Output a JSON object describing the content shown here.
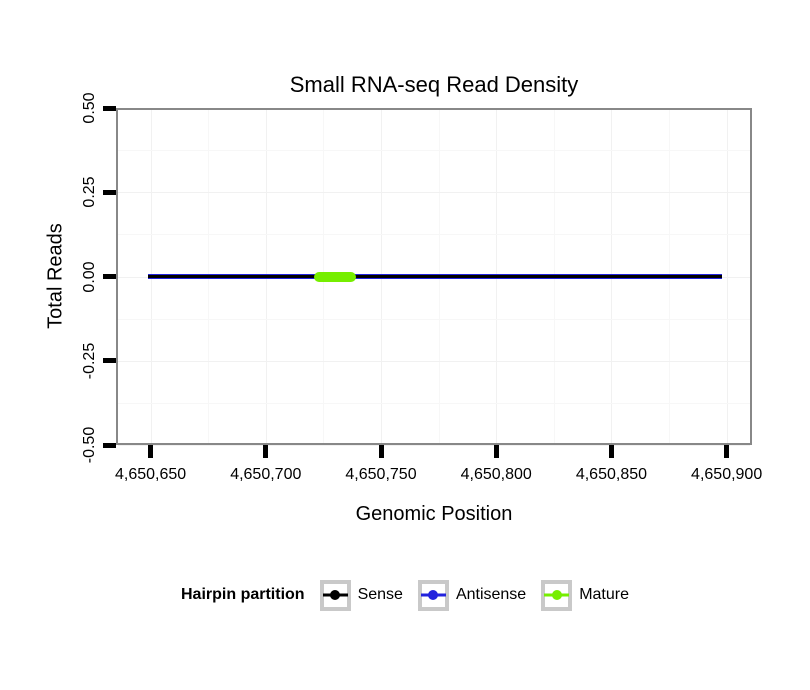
{
  "chart_data": {
    "type": "line",
    "title": "Small RNA-seq Read Density",
    "xlabel": "Genomic Position",
    "ylabel": "Total Reads",
    "xlim": [
      4650635,
      4650911
    ],
    "ylim": [
      -0.5,
      0.5
    ],
    "xticks": {
      "values": [
        4650650,
        4650700,
        4650750,
        4650800,
        4650850,
        4650900
      ],
      "labels": [
        "4,650,650",
        "4,650,700",
        "4,650,750",
        "4,650,800",
        "4,650,850",
        "4,650,900"
      ]
    },
    "yticks": {
      "values": [
        0.5,
        0.25,
        0.0,
        -0.25,
        -0.5
      ],
      "labels": [
        "0.50",
        "0.25",
        "0.00",
        "-0.25",
        "-0.50"
      ]
    },
    "grid": {
      "show": true,
      "show_minor": true,
      "major_color": "#f1f1f1",
      "minor_color": "#f7f7f7"
    },
    "panel_border_color": "#888888",
    "tick_color": "#000000",
    "series": [
      {
        "name": "Antisense",
        "color": "#2222DD",
        "x": [
          4650649,
          4650898
        ],
        "y": [
          0,
          0
        ],
        "thickness": 5,
        "rounded": false
      },
      {
        "name": "Sense",
        "color": "#000000",
        "x": [
          4650649,
          4650898
        ],
        "y": [
          0,
          0
        ],
        "thickness": 3,
        "rounded": false
      },
      {
        "name": "Mature",
        "color": "#76EE00",
        "x": [
          4650721,
          4650739
        ],
        "y": [
          0,
          0
        ],
        "thickness": 10,
        "rounded": true
      }
    ],
    "legend": {
      "title": "Hairpin partition",
      "position": "bottom",
      "entries": [
        {
          "label": "Sense",
          "color": "#000000"
        },
        {
          "label": "Antisense",
          "color": "#2222DD"
        },
        {
          "label": "Mature",
          "color": "#76EE00"
        }
      ]
    }
  }
}
